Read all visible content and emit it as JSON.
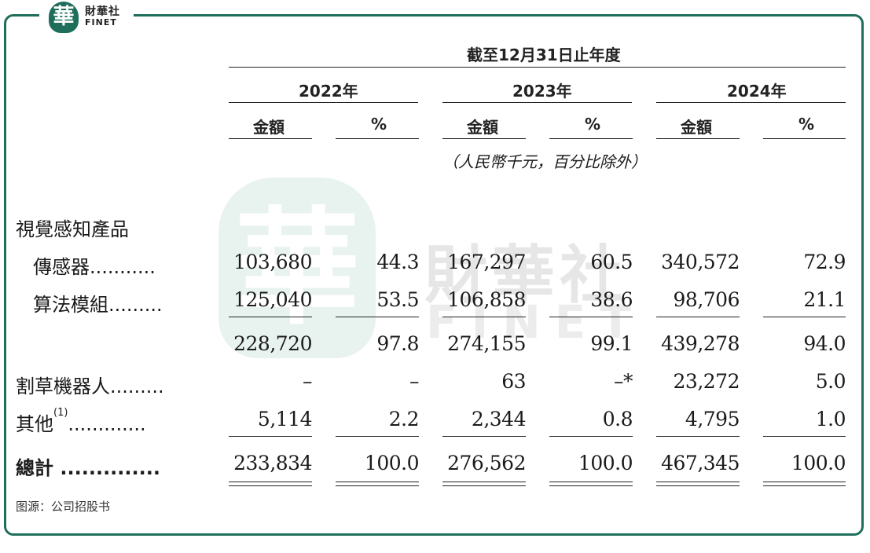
{
  "brand": {
    "logo_glyph": "華",
    "name_cn": "財華社",
    "name_en": "FINET",
    "color": "#1f6e5c"
  },
  "table": {
    "period_header": "截至12月31日止年度",
    "years": [
      "2022年",
      "2023年",
      "2024年"
    ],
    "sub_amount": "金額",
    "sub_percent": "%",
    "unit_note": "（人民幣千元，百分比除外）",
    "category": "視覺感知產品",
    "rows": [
      {
        "label": "傳感器",
        "dots": "...........",
        "values": [
          "103,680",
          "44.3",
          "167,297",
          "60.5",
          "340,572",
          "72.9"
        ]
      },
      {
        "label": "算法模組",
        "dots": ".........",
        "values": [
          "125,040",
          "53.5",
          "106,858",
          "38.6",
          "98,706",
          "21.1"
        ]
      },
      {
        "label": "",
        "dots": "",
        "values": [
          "228,720",
          "97.8",
          "274,155",
          "99.1",
          "439,278",
          "94.0"
        ]
      },
      {
        "label": "割草機器人",
        "dots": ".........",
        "values": [
          "–",
          "–",
          "63",
          "–*",
          "23,272",
          "5.0"
        ]
      },
      {
        "label": "其他",
        "sup": "(1)",
        "dots": ".............",
        "values": [
          "5,114",
          "2.2",
          "2,344",
          "0.8",
          "4,795",
          "1.0"
        ]
      },
      {
        "label": "總計",
        "dots": "..............",
        "values": [
          "233,834",
          "100.0",
          "276,562",
          "100.0",
          "467,345",
          "100.0"
        ]
      }
    ]
  },
  "source": "图源：公司招股书"
}
